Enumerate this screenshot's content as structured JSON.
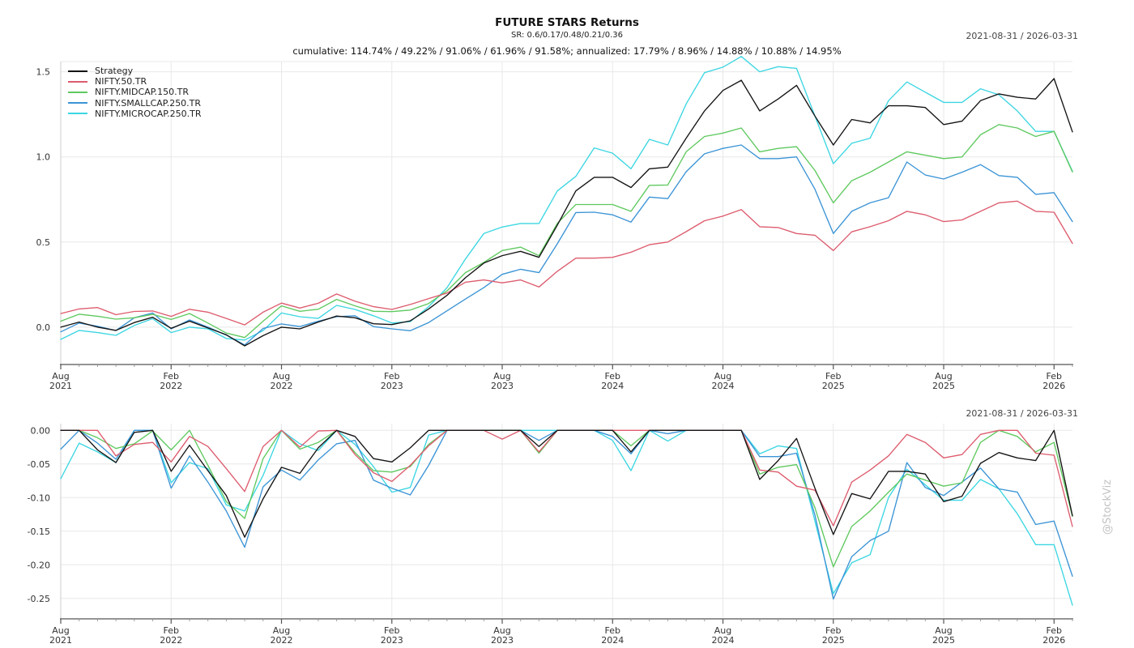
{
  "header": {
    "title": "FUTURE STARS Returns",
    "subtitle": "SR: 0.6/0.17/0.48/0.21/0.36",
    "stats_line": "cumulative: 114.74% / 49.22% / 91.06% / 61.96% / 91.58%; annualized: 17.79% / 8.96% / 14.88% / 10.88% / 14.95%",
    "date_range_top": "2021-08-31 / 2026-03-31",
    "date_range_bottom": "2021-08-31 / 2026-03-31"
  },
  "watermark": "@StockViz",
  "chart_data": [
    {
      "type": "line",
      "name": "cumulative-returns",
      "x_period": "monthly",
      "x_start": "2021-08",
      "x_end": "2026-03",
      "x_count": 56,
      "x_major_ticks": [
        {
          "i": 0,
          "month": "Aug",
          "year": "2021"
        },
        {
          "i": 6,
          "month": "Feb",
          "year": "2022"
        },
        {
          "i": 12,
          "month": "Aug",
          "year": "2022"
        },
        {
          "i": 18,
          "month": "Feb",
          "year": "2023"
        },
        {
          "i": 24,
          "month": "Aug",
          "year": "2023"
        },
        {
          "i": 30,
          "month": "Feb",
          "year": "2024"
        },
        {
          "i": 36,
          "month": "Aug",
          "year": "2024"
        },
        {
          "i": 42,
          "month": "Feb",
          "year": "2025"
        },
        {
          "i": 48,
          "month": "Aug",
          "year": "2025"
        },
        {
          "i": 54,
          "month": "Feb",
          "year": "2026"
        }
      ],
      "yticks": [
        {
          "v": 0.0,
          "label": "0.0"
        },
        {
          "v": 0.5,
          "label": "0.5"
        },
        {
          "v": 1.0,
          "label": "1.0"
        },
        {
          "v": 1.5,
          "label": "1.5"
        }
      ],
      "ylim": [
        -0.21,
        1.56
      ],
      "grid": true,
      "top_border": true,
      "legend_position": "top-left",
      "series": [
        {
          "name": "Strategy",
          "color": "#141414",
          "values": [
            0.0,
            0.03,
            0.0,
            -0.019,
            0.027,
            0.058,
            -0.007,
            0.035,
            -0.005,
            -0.045,
            -0.11,
            -0.05,
            0.0,
            -0.01,
            0.03,
            0.065,
            0.055,
            0.02,
            0.015,
            0.037,
            0.107,
            0.187,
            0.29,
            0.376,
            0.42,
            0.445,
            0.41,
            0.6,
            0.8,
            0.88,
            0.88,
            0.82,
            0.93,
            0.94,
            1.11,
            1.27,
            1.39,
            1.45,
            1.27,
            1.34,
            1.42,
            1.24,
            1.07,
            1.22,
            1.2,
            1.3,
            1.3,
            1.29,
            1.19,
            1.21,
            1.33,
            1.37,
            1.35,
            1.34,
            1.46,
            1.147
          ]
        },
        {
          "name": "NIFTY.50.TR",
          "color": "#dd5c6e",
          "values": [
            0.08,
            0.107,
            0.115,
            0.073,
            0.092,
            0.095,
            0.063,
            0.105,
            0.088,
            0.051,
            0.013,
            0.088,
            0.141,
            0.112,
            0.14,
            0.195,
            0.152,
            0.12,
            0.104,
            0.133,
            0.168,
            0.2,
            0.264,
            0.277,
            0.26,
            0.277,
            0.236,
            0.328,
            0.405,
            0.405,
            0.41,
            0.44,
            0.484,
            0.5,
            0.561,
            0.625,
            0.652,
            0.69,
            0.59,
            0.585,
            0.55,
            0.54,
            0.45,
            0.56,
            0.59,
            0.625,
            0.68,
            0.66,
            0.62,
            0.63,
            0.68,
            0.73,
            0.74,
            0.68,
            0.675,
            0.492
          ]
        },
        {
          "name": "NIFTY.MIDCAP.150.TR",
          "color": "#5fc95f",
          "values": [
            0.035,
            0.076,
            0.064,
            0.047,
            0.055,
            0.075,
            0.045,
            0.08,
            0.024,
            -0.035,
            -0.061,
            0.035,
            0.125,
            0.093,
            0.105,
            0.163,
            0.125,
            0.093,
            0.091,
            0.1,
            0.139,
            0.213,
            0.32,
            0.38,
            0.45,
            0.47,
            0.42,
            0.61,
            0.72,
            0.72,
            0.72,
            0.68,
            0.833,
            0.835,
            1.03,
            1.12,
            1.14,
            1.17,
            1.03,
            1.05,
            1.06,
            0.92,
            0.73,
            0.86,
            0.91,
            0.97,
            1.03,
            1.01,
            0.99,
            1.0,
            1.13,
            1.19,
            1.17,
            1.12,
            1.15,
            0.911
          ]
        },
        {
          "name": "NIFTY.SMALLCAP.250.TR",
          "color": "#3b94d6",
          "values": [
            -0.028,
            0.024,
            0.005,
            -0.02,
            0.055,
            0.083,
            -0.01,
            0.042,
            0.0,
            -0.047,
            -0.105,
            -0.008,
            0.019,
            0.003,
            0.035,
            0.061,
            0.067,
            0.003,
            -0.01,
            -0.021,
            0.027,
            0.096,
            0.165,
            0.232,
            0.31,
            0.34,
            0.32,
            0.49,
            0.673,
            0.675,
            0.66,
            0.617,
            0.764,
            0.755,
            0.913,
            1.018,
            1.05,
            1.07,
            0.99,
            0.99,
            1.0,
            0.81,
            0.55,
            0.68,
            0.73,
            0.76,
            0.97,
            0.894,
            0.87,
            0.91,
            0.955,
            0.89,
            0.88,
            0.78,
            0.79,
            0.62
          ]
        },
        {
          "name": "NIFTY.MICROCAP.250.TR",
          "color": "#3cd6e2",
          "values": [
            -0.072,
            -0.019,
            -0.032,
            -0.048,
            0.01,
            0.05,
            -0.032,
            0.0,
            -0.01,
            -0.067,
            -0.076,
            -0.02,
            0.083,
            0.061,
            0.051,
            0.128,
            0.104,
            0.067,
            0.024,
            0.032,
            0.12,
            0.232,
            0.4,
            0.55,
            0.588,
            0.609,
            0.609,
            0.8,
            0.886,
            1.053,
            1.022,
            0.93,
            1.103,
            1.07,
            1.311,
            1.495,
            1.527,
            1.59,
            1.5,
            1.53,
            1.52,
            1.24,
            0.96,
            1.08,
            1.11,
            1.33,
            1.44,
            1.38,
            1.32,
            1.32,
            1.4,
            1.365,
            1.27,
            1.15,
            1.15,
            0.916
          ]
        }
      ]
    },
    {
      "type": "line",
      "name": "drawdowns",
      "x_period": "monthly",
      "x_start": "2021-08",
      "x_end": "2026-03",
      "x_count": 56,
      "x_major_ticks": [
        {
          "i": 0,
          "month": "Aug",
          "year": "2021"
        },
        {
          "i": 6,
          "month": "Feb",
          "year": "2022"
        },
        {
          "i": 12,
          "month": "Aug",
          "year": "2022"
        },
        {
          "i": 18,
          "month": "Feb",
          "year": "2023"
        },
        {
          "i": 24,
          "month": "Aug",
          "year": "2023"
        },
        {
          "i": 30,
          "month": "Feb",
          "year": "2024"
        },
        {
          "i": 36,
          "month": "Aug",
          "year": "2024"
        },
        {
          "i": 42,
          "month": "Feb",
          "year": "2025"
        },
        {
          "i": 48,
          "month": "Aug",
          "year": "2025"
        },
        {
          "i": 54,
          "month": "Feb",
          "year": "2026"
        }
      ],
      "yticks": [
        {
          "v": 0.0,
          "label": "0.00"
        },
        {
          "v": -0.05,
          "label": "-0.05"
        },
        {
          "v": -0.1,
          "label": "-0.10"
        },
        {
          "v": -0.15,
          "label": "-0.15"
        },
        {
          "v": -0.2,
          "label": "-0.20"
        },
        {
          "v": -0.25,
          "label": "-0.25"
        }
      ],
      "ylim": [
        -0.278,
        0.01
      ],
      "grid": true,
      "top_border": false,
      "legend_position": "none",
      "series": [
        {
          "name": "Strategy",
          "color": "#141414",
          "values": [
            0.0,
            0.0,
            -0.029,
            -0.048,
            -0.003,
            0.0,
            -0.061,
            -0.022,
            -0.06,
            -0.097,
            -0.159,
            -0.102,
            -0.055,
            -0.064,
            -0.026,
            0.0,
            -0.009,
            -0.042,
            -0.047,
            -0.026,
            0.0,
            0.0,
            0.0,
            0.0,
            0.0,
            0.0,
            -0.024,
            0.0,
            0.0,
            0.0,
            0.0,
            -0.032,
            0.0,
            0.0,
            0.0,
            0.0,
            0.0,
            0.0,
            -0.073,
            -0.045,
            -0.012,
            -0.086,
            -0.155,
            -0.094,
            -0.102,
            -0.061,
            -0.061,
            -0.065,
            -0.106,
            -0.098,
            -0.049,
            -0.033,
            -0.041,
            -0.045,
            0.0,
            -0.127
          ]
        },
        {
          "name": "NIFTY.50.TR",
          "color": "#dd5c6e",
          "values": [
            0.0,
            0.0,
            0.0,
            -0.038,
            -0.021,
            -0.018,
            -0.047,
            -0.009,
            -0.024,
            -0.057,
            -0.091,
            -0.024,
            0.0,
            -0.025,
            -0.001,
            0.0,
            -0.036,
            -0.063,
            -0.076,
            -0.052,
            -0.023,
            0.0,
            0.0,
            0.0,
            -0.013,
            0.0,
            -0.032,
            0.0,
            0.0,
            0.0,
            0.0,
            0.0,
            0.0,
            0.0,
            0.0,
            0.0,
            0.0,
            0.0,
            -0.059,
            -0.062,
            -0.083,
            -0.089,
            -0.142,
            -0.077,
            -0.059,
            -0.038,
            -0.006,
            -0.018,
            -0.041,
            -0.036,
            -0.006,
            0.0,
            0.0,
            -0.034,
            -0.037,
            -0.143
          ]
        },
        {
          "name": "NIFTY.MIDCAP.150.TR",
          "color": "#5fc95f",
          "values": [
            0.0,
            0.0,
            -0.011,
            -0.027,
            -0.02,
            -0.001,
            -0.029,
            0.0,
            -0.052,
            -0.106,
            -0.131,
            -0.042,
            0.0,
            -0.028,
            -0.018,
            0.0,
            -0.033,
            -0.06,
            -0.062,
            -0.054,
            -0.021,
            0.0,
            0.0,
            0.0,
            0.0,
            0.0,
            -0.034,
            0.0,
            0.0,
            0.0,
            0.0,
            -0.023,
            0.0,
            0.0,
            0.0,
            0.0,
            0.0,
            0.0,
            -0.065,
            -0.055,
            -0.051,
            -0.115,
            -0.203,
            -0.143,
            -0.12,
            -0.092,
            -0.065,
            -0.074,
            -0.083,
            -0.078,
            -0.018,
            0.0,
            -0.009,
            -0.032,
            -0.018,
            -0.128
          ]
        },
        {
          "name": "NIFTY.SMALLCAP.250.TR",
          "color": "#3b94d6",
          "values": [
            -0.028,
            0.0,
            -0.019,
            -0.043,
            0.0,
            0.0,
            -0.086,
            -0.038,
            -0.077,
            -0.12,
            -0.174,
            -0.084,
            -0.059,
            -0.074,
            -0.044,
            -0.02,
            -0.015,
            -0.074,
            -0.086,
            -0.096,
            -0.052,
            0.0,
            0.0,
            0.0,
            0.0,
            0.0,
            -0.015,
            0.0,
            0.0,
            0.0,
            -0.009,
            -0.035,
            0.0,
            -0.005,
            0.0,
            0.0,
            0.0,
            0.0,
            -0.039,
            -0.039,
            -0.034,
            -0.126,
            -0.251,
            -0.188,
            -0.164,
            -0.15,
            -0.048,
            -0.085,
            -0.097,
            -0.077,
            -0.056,
            -0.087,
            -0.092,
            -0.14,
            -0.135,
            -0.217
          ]
        },
        {
          "name": "NIFTY.MICROCAP.250.TR",
          "color": "#3cd6e2",
          "values": [
            -0.072,
            -0.019,
            -0.032,
            -0.048,
            0.0,
            0.0,
            -0.078,
            -0.048,
            -0.057,
            -0.111,
            -0.12,
            -0.067,
            0.0,
            -0.02,
            -0.03,
            0.0,
            -0.021,
            -0.054,
            -0.092,
            -0.085,
            -0.007,
            0.0,
            0.0,
            0.0,
            0.0,
            0.0,
            0.0,
            0.0,
            0.0,
            0.0,
            -0.015,
            -0.06,
            0.0,
            -0.016,
            0.0,
            0.0,
            0.0,
            0.0,
            -0.035,
            -0.023,
            -0.027,
            -0.135,
            -0.243,
            -0.197,
            -0.185,
            -0.1,
            -0.058,
            -0.081,
            -0.104,
            -0.104,
            -0.073,
            -0.087,
            -0.124,
            -0.17,
            -0.17,
            -0.26
          ]
        }
      ]
    }
  ]
}
